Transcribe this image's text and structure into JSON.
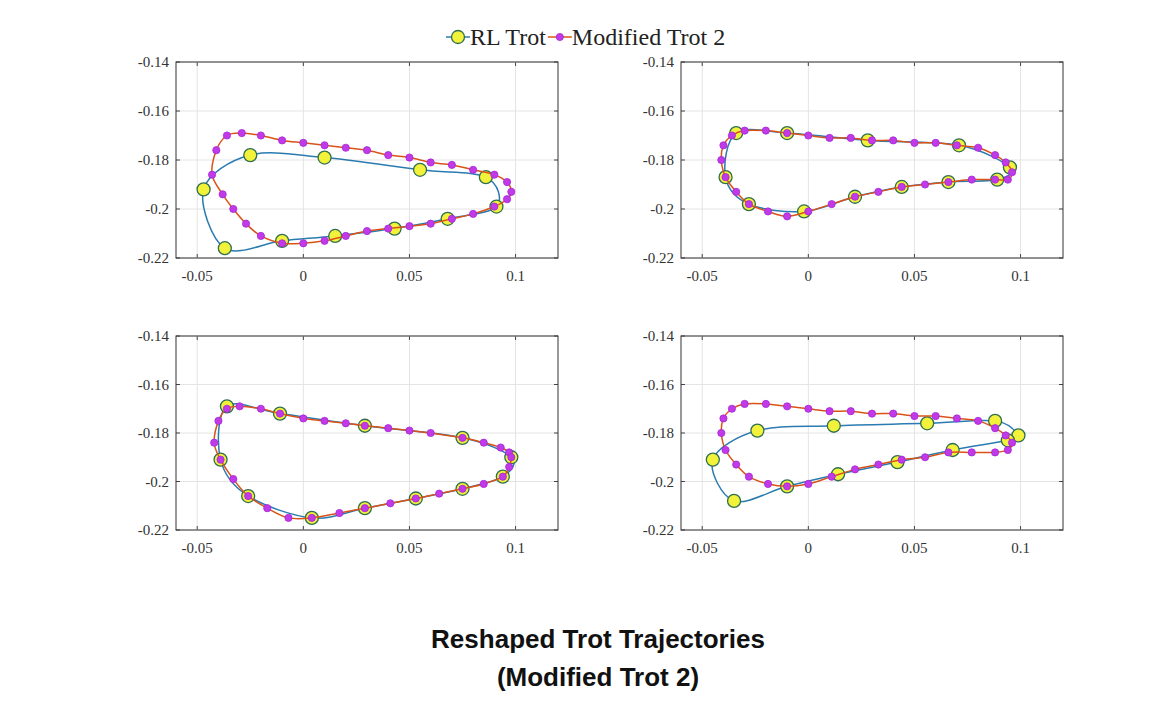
{
  "chart_data": [
    {
      "type": "line",
      "legend": "top",
      "grid": true,
      "xlim": [
        -0.06,
        0.12
      ],
      "ylim": [
        -0.22,
        -0.14
      ],
      "xticks": [
        -0.05,
        0,
        0.05,
        0.1
      ],
      "yticks": [
        -0.22,
        -0.2,
        -0.18,
        -0.16,
        -0.14
      ],
      "series": [
        {
          "name": "RL Trot",
          "color": "#2b7bb0",
          "marker": "circle",
          "x": [
            -0.047,
            -0.025,
            0.01,
            0.055,
            0.086,
            0.091,
            0.068,
            0.043,
            0.015,
            -0.01,
            -0.037
          ],
          "values": [
            -0.192,
            -0.178,
            -0.179,
            -0.184,
            -0.187,
            -0.199,
            -0.204,
            -0.208,
            -0.211,
            -0.213,
            -0.216
          ]
        },
        {
          "name": "Modified Trot 2",
          "color": "#d95319",
          "marker": "dot",
          "x": [
            -0.043,
            -0.041,
            -0.036,
            -0.029,
            -0.02,
            -0.01,
            0,
            0.01,
            0.02,
            0.03,
            0.04,
            0.05,
            0.06,
            0.07,
            0.08,
            0.09,
            0.096,
            0.098,
            0.096,
            0.09,
            0.08,
            0.07,
            0.06,
            0.05,
            0.04,
            0.03,
            0.02,
            0.01,
            0,
            -0.01,
            -0.02,
            -0.027,
            -0.033,
            -0.038
          ],
          "values": [
            -0.186,
            -0.176,
            -0.17,
            -0.169,
            -0.17,
            -0.172,
            -0.173,
            -0.174,
            -0.175,
            -0.176,
            -0.178,
            -0.179,
            -0.181,
            -0.182,
            -0.184,
            -0.186,
            -0.189,
            -0.193,
            -0.196,
            -0.199,
            -0.202,
            -0.204,
            -0.206,
            -0.207,
            -0.208,
            -0.209,
            -0.211,
            -0.213,
            -0.214,
            -0.214,
            -0.211,
            -0.206,
            -0.2,
            -0.194
          ]
        }
      ]
    },
    {
      "type": "line",
      "grid": true,
      "xlim": [
        -0.06,
        0.12
      ],
      "ylim": [
        -0.22,
        -0.14
      ],
      "xticks": [
        -0.05,
        0,
        0.05,
        0.1
      ],
      "yticks": [
        -0.22,
        -0.2,
        -0.18,
        -0.16,
        -0.14
      ],
      "series": [
        {
          "name": "RL Trot",
          "color": "#2b7bb0",
          "marker": "circle",
          "x": [
            -0.034,
            -0.01,
            0.028,
            0.071,
            0.095,
            0.089,
            0.066,
            0.044,
            0.022,
            -0.002,
            -0.028,
            -0.039
          ],
          "values": [
            -0.169,
            -0.169,
            -0.172,
            -0.174,
            -0.183,
            -0.188,
            -0.189,
            -0.191,
            -0.195,
            -0.201,
            -0.198,
            -0.187
          ]
        },
        {
          "name": "Modified Trot 2",
          "color": "#d95319",
          "marker": "dot",
          "x": [
            -0.041,
            -0.04,
            -0.036,
            -0.03,
            -0.02,
            -0.01,
            0,
            0.01,
            0.02,
            0.03,
            0.04,
            0.05,
            0.06,
            0.07,
            0.08,
            0.088,
            0.093,
            0.096,
            0.094,
            0.088,
            0.077,
            0.066,
            0.055,
            0.044,
            0.033,
            0.022,
            0.011,
            0,
            -0.01,
            -0.019,
            -0.028,
            -0.034,
            -0.039
          ],
          "values": [
            -0.18,
            -0.174,
            -0.17,
            -0.168,
            -0.168,
            -0.169,
            -0.17,
            -0.171,
            -0.171,
            -0.172,
            -0.172,
            -0.173,
            -0.173,
            -0.174,
            -0.175,
            -0.178,
            -0.181,
            -0.185,
            -0.188,
            -0.188,
            -0.188,
            -0.189,
            -0.19,
            -0.191,
            -0.193,
            -0.195,
            -0.198,
            -0.201,
            -0.203,
            -0.201,
            -0.198,
            -0.193,
            -0.187
          ]
        }
      ]
    },
    {
      "type": "line",
      "grid": true,
      "xlim": [
        -0.06,
        0.12
      ],
      "ylim": [
        -0.22,
        -0.14
      ],
      "xticks": [
        -0.05,
        0,
        0.05,
        0.1
      ],
      "yticks": [
        -0.22,
        -0.2,
        -0.18,
        -0.16,
        -0.14
      ],
      "series": [
        {
          "name": "RL Trot",
          "color": "#2b7bb0",
          "marker": "circle",
          "x": [
            -0.036,
            -0.011,
            0.029,
            0.075,
            0.098,
            0.094,
            0.075,
            0.053,
            0.029,
            0.004,
            -0.026,
            -0.039
          ],
          "values": [
            -0.169,
            -0.172,
            -0.177,
            -0.182,
            -0.19,
            -0.198,
            -0.203,
            -0.207,
            -0.211,
            -0.215,
            -0.206,
            -0.191
          ]
        },
        {
          "name": "Modified Trot 2",
          "color": "#d95319",
          "marker": "dot",
          "x": [
            -0.042,
            -0.04,
            -0.036,
            -0.03,
            -0.02,
            -0.011,
            0,
            0.01,
            0.02,
            0.029,
            0.04,
            0.05,
            0.06,
            0.075,
            0.085,
            0.093,
            0.097,
            0.098,
            0.097,
            0.094,
            0.085,
            0.075,
            0.064,
            0.053,
            0.041,
            0.029,
            0.017,
            0.004,
            -0.007,
            -0.017,
            -0.026,
            -0.033,
            -0.039
          ],
          "values": [
            -0.184,
            -0.175,
            -0.17,
            -0.169,
            -0.17,
            -0.172,
            -0.174,
            -0.175,
            -0.176,
            -0.177,
            -0.178,
            -0.179,
            -0.18,
            -0.182,
            -0.184,
            -0.186,
            -0.188,
            -0.19,
            -0.194,
            -0.198,
            -0.201,
            -0.203,
            -0.205,
            -0.207,
            -0.209,
            -0.211,
            -0.213,
            -0.215,
            -0.215,
            -0.211,
            -0.206,
            -0.199,
            -0.191
          ]
        }
      ]
    },
    {
      "type": "line",
      "grid": true,
      "xlim": [
        -0.06,
        0.12
      ],
      "ylim": [
        -0.22,
        -0.14
      ],
      "xticks": [
        -0.05,
        0,
        0.05,
        0.1
      ],
      "yticks": [
        -0.22,
        -0.2,
        -0.18,
        -0.16,
        -0.14
      ],
      "series": [
        {
          "name": "RL Trot",
          "color": "#2b7bb0",
          "marker": "circle",
          "x": [
            -0.045,
            -0.024,
            0.012,
            0.056,
            0.088,
            0.099,
            0.094,
            0.068,
            0.042,
            0.014,
            -0.01,
            -0.035
          ],
          "values": [
            -0.191,
            -0.179,
            -0.177,
            -0.176,
            -0.175,
            -0.181,
            -0.183,
            -0.187,
            -0.192,
            -0.197,
            -0.202,
            -0.208
          ]
        },
        {
          "name": "Modified Trot 2",
          "color": "#d95319",
          "marker": "dot",
          "x": [
            -0.041,
            -0.04,
            -0.036,
            -0.03,
            -0.02,
            -0.01,
            0,
            0.01,
            0.02,
            0.03,
            0.04,
            0.05,
            0.06,
            0.07,
            0.08,
            0.088,
            0.093,
            0.096,
            0.094,
            0.088,
            0.077,
            0.066,
            0.055,
            0.044,
            0.033,
            0.022,
            0.011,
            0,
            -0.01,
            -0.019,
            -0.028,
            -0.034,
            -0.039
          ],
          "values": [
            -0.18,
            -0.174,
            -0.17,
            -0.168,
            -0.168,
            -0.169,
            -0.17,
            -0.171,
            -0.171,
            -0.172,
            -0.172,
            -0.173,
            -0.173,
            -0.174,
            -0.175,
            -0.178,
            -0.181,
            -0.184,
            -0.187,
            -0.188,
            -0.188,
            -0.188,
            -0.19,
            -0.191,
            -0.193,
            -0.195,
            -0.198,
            -0.201,
            -0.202,
            -0.201,
            -0.198,
            -0.193,
            -0.187
          ]
        }
      ]
    }
  ],
  "caption": [
    "Reshaped Trot Trajectories",
    "(Modified Trot 2)"
  ]
}
